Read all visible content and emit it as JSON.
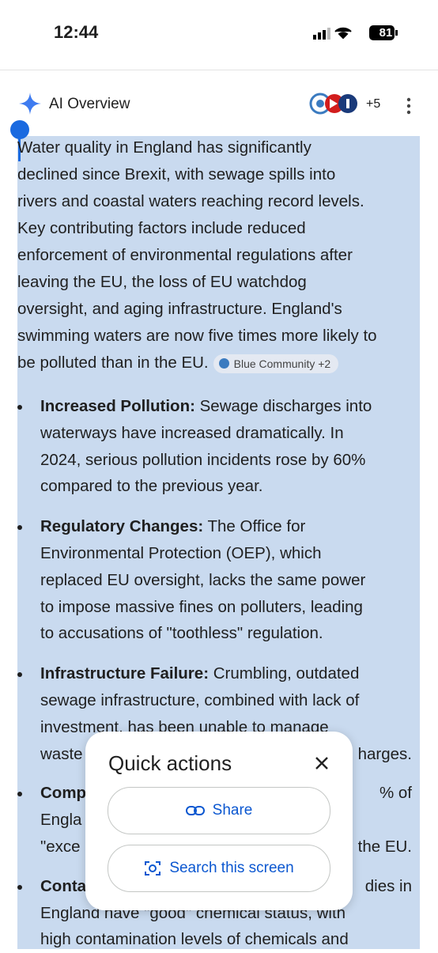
{
  "status_bar": {
    "time": "12:44",
    "battery": "81"
  },
  "overview": {
    "title": "AI Overview",
    "sources_more": "+5",
    "paragraph_lines": [
      "Water quality in England has significantly",
      "declined since Brexit, with sewage spills into",
      "rivers and coastal waters reaching record levels.",
      "Key contributing factors include reduced",
      "enforcement of environmental regulations after",
      "leaving the EU, the loss of EU watchdog",
      "oversight, and aging infrastructure. England's",
      "swimming waters are now five times more likely to",
      "be polluted than in the EU."
    ],
    "source_chip": "Blue Community +2",
    "bullets": [
      {
        "label": "Increased Pollution:",
        "lines": [
          "Sewage discharges into",
          "waterways have increased dramatically. In",
          "2024, serious pollution incidents rose by 60%",
          "compared to the previous year."
        ]
      },
      {
        "label": "Regulatory Changes:",
        "lines": [
          "The Office for",
          "Environmental Protection (OEP), which",
          "replaced EU oversight, lacks the same power",
          "to impose massive fines on polluters, leading",
          "to accusations of \"toothless\" regulation."
        ]
      },
      {
        "label": "Infrastructure Failure:",
        "lines": [
          "Crumbling, outdated",
          "sewage infrastructure, combined with lack of",
          "investment, has been unable to manage",
          {
            "left": "waste",
            "right": "harges."
          }
        ]
      },
      {
        "label": "Comp",
        "lines": [
          {
            "right": "% of"
          },
          {
            "left": "Engla"
          },
          {
            "left": "\"exce",
            "right": "the EU."
          }
        ]
      },
      {
        "label": "Conta",
        "lines": [
          {
            "right": "dies in"
          },
          "England have \"good\" chemical status, with",
          "high contamination levels of chemicals and"
        ]
      }
    ]
  },
  "dialog": {
    "title": "Quick actions",
    "buttons": [
      "Share",
      "Search this screen"
    ]
  }
}
